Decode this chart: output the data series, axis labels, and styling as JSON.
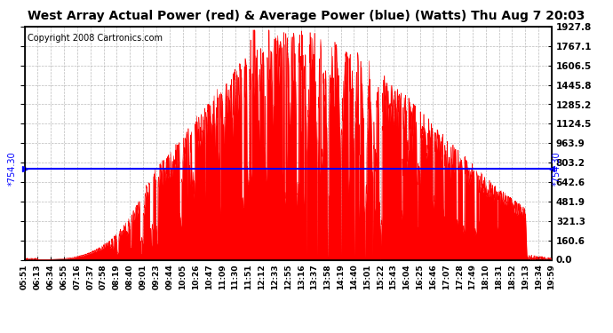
{
  "title": "West Array Actual Power (red) & Average Power (blue) (Watts) Thu Aug 7 20:03",
  "copyright": "Copyright 2008 Cartronics.com",
  "avg_power": 754.3,
  "y_max": 1927.8,
  "y_min": 0.0,
  "y_ticks": [
    0.0,
    160.6,
    321.3,
    481.9,
    642.6,
    803.2,
    963.9,
    1124.5,
    1285.2,
    1445.8,
    1606.5,
    1767.1,
    1927.8
  ],
  "background_color": "#ffffff",
  "plot_bg_color": "#ffffff",
  "grid_color": "#aaaaaa",
  "red_color": "#ff0000",
  "blue_color": "#0000ff",
  "title_fontsize": 10,
  "copyright_fontsize": 7,
  "x_tick_labels": [
    "05:51",
    "06:13",
    "06:34",
    "06:55",
    "07:16",
    "07:37",
    "07:58",
    "08:19",
    "08:40",
    "09:01",
    "09:23",
    "09:44",
    "10:05",
    "10:26",
    "10:47",
    "11:09",
    "11:30",
    "11:51",
    "12:12",
    "12:33",
    "12:55",
    "13:16",
    "13:37",
    "13:58",
    "14:19",
    "14:40",
    "15:01",
    "15:22",
    "15:43",
    "16:04",
    "16:25",
    "16:46",
    "17:07",
    "17:28",
    "17:49",
    "18:10",
    "18:31",
    "18:52",
    "19:13",
    "19:34",
    "19:59"
  ],
  "n_points": 2000
}
